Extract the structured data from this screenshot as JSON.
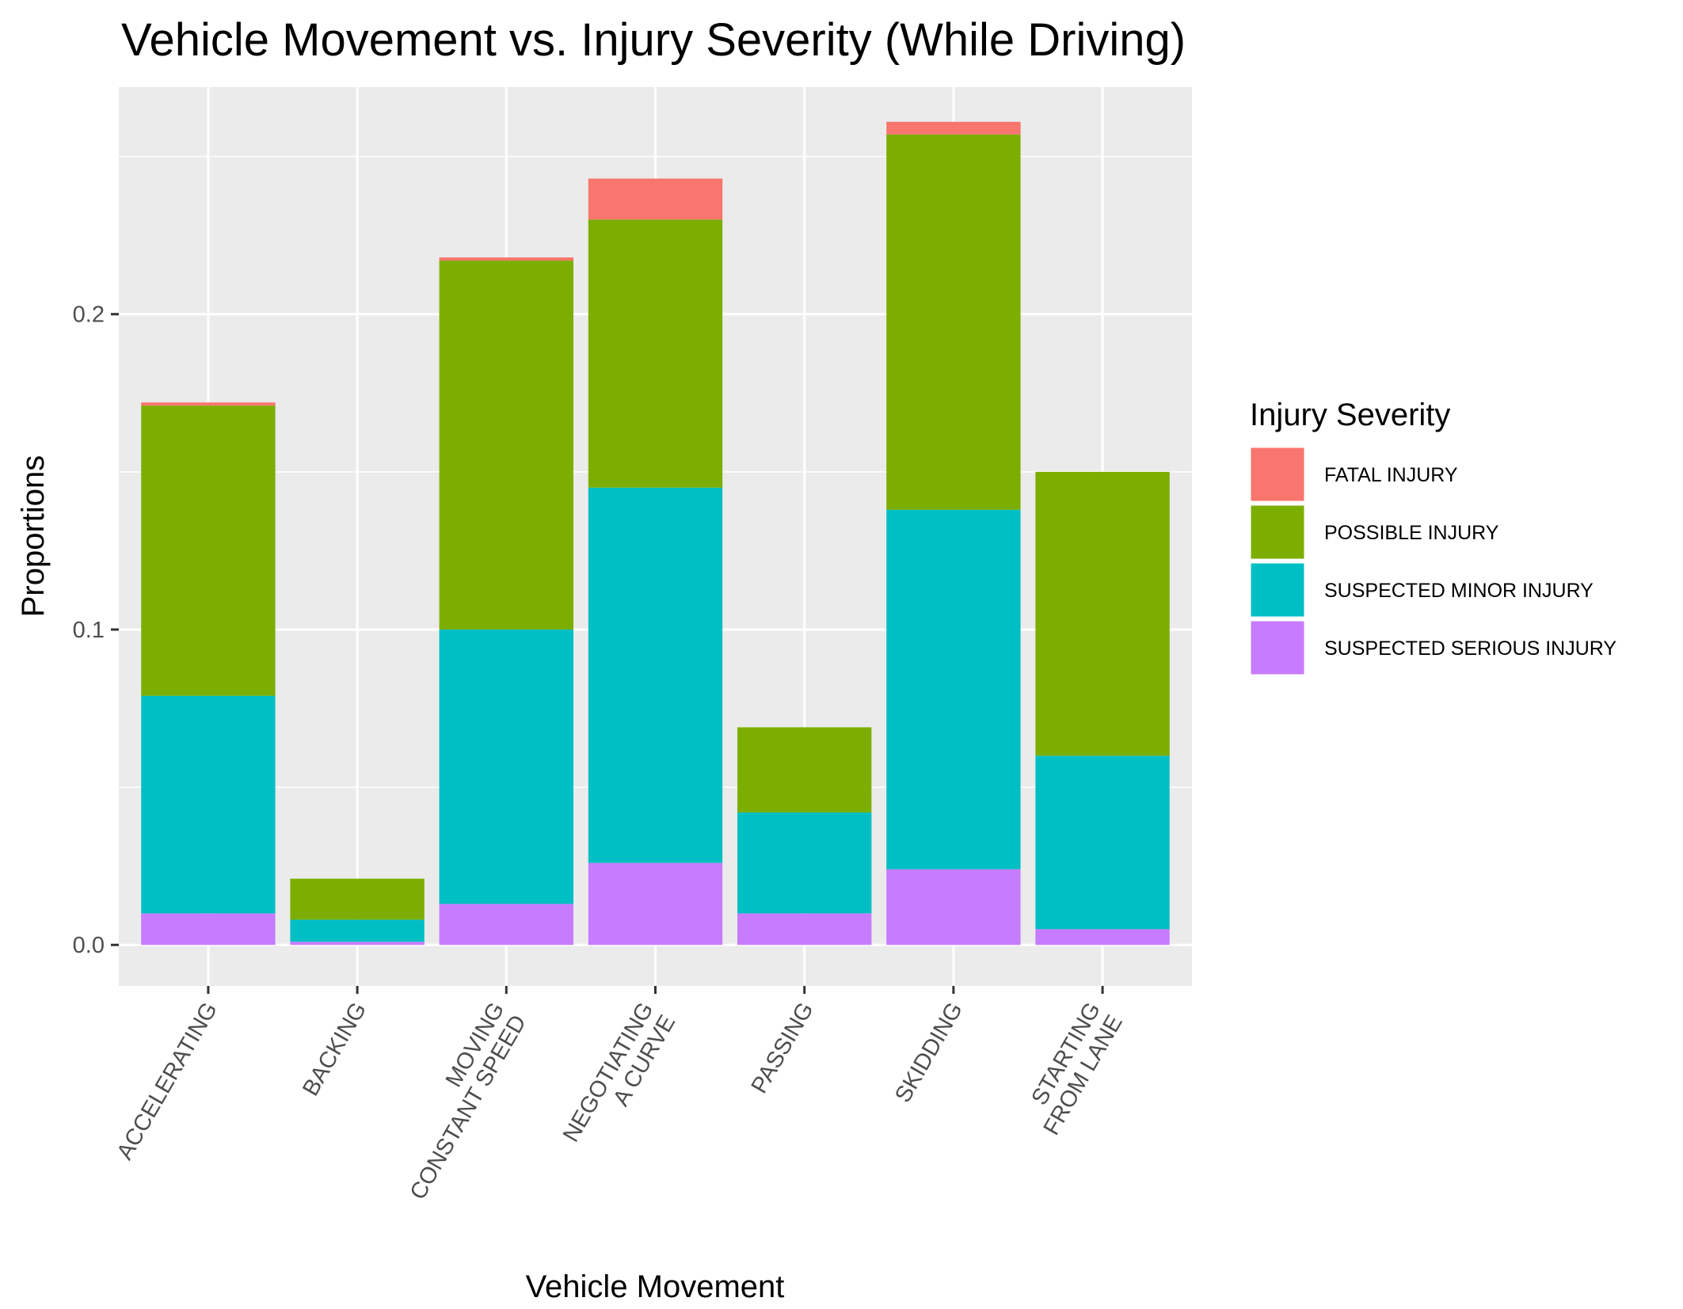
{
  "chart_data": {
    "type": "bar",
    "stacked": true,
    "title": "Vehicle Movement vs. Injury Severity (While Driving)",
    "xlabel": "Vehicle Movement",
    "ylabel": "Proportions",
    "ylim": [
      -0.013,
      0.272
    ],
    "y_ticks": [
      "0.0",
      "0.1",
      "0.2"
    ],
    "y_tick_values": [
      0.0,
      0.1,
      0.2
    ],
    "grid": true,
    "categories": [
      [
        "ACCELERATING"
      ],
      [
        "BACKING"
      ],
      [
        "MOVING",
        "CONSTANT SPEED"
      ],
      [
        "NEGOTIATING",
        "A CURVE"
      ],
      [
        "PASSING"
      ],
      [
        "SKIDDING"
      ],
      [
        "STARTING",
        "FROM LANE"
      ]
    ],
    "legend": {
      "title": "Injury Severity",
      "position": "right"
    },
    "series": [
      {
        "name": "SUSPECTED SERIOUS INJURY",
        "color": "#C77CFF",
        "values": [
          0.01,
          0.001,
          0.013,
          0.026,
          0.01,
          0.024,
          0.005
        ]
      },
      {
        "name": "SUSPECTED MINOR INJURY",
        "color": "#00BFC4",
        "values": [
          0.069,
          0.007,
          0.087,
          0.119,
          0.032,
          0.114,
          0.055
        ]
      },
      {
        "name": "POSSIBLE INJURY",
        "color": "#7CAE00",
        "values": [
          0.092,
          0.013,
          0.117,
          0.085,
          0.027,
          0.119,
          0.09
        ]
      },
      {
        "name": "FATAL INJURY",
        "color": "#F8766D",
        "values": [
          0.001,
          0.0,
          0.001,
          0.013,
          0.0,
          0.004,
          0.0
        ]
      }
    ],
    "legend_order": [
      "FATAL INJURY",
      "POSSIBLE INJURY",
      "SUSPECTED MINOR INJURY",
      "SUSPECTED SERIOUS INJURY"
    ]
  }
}
